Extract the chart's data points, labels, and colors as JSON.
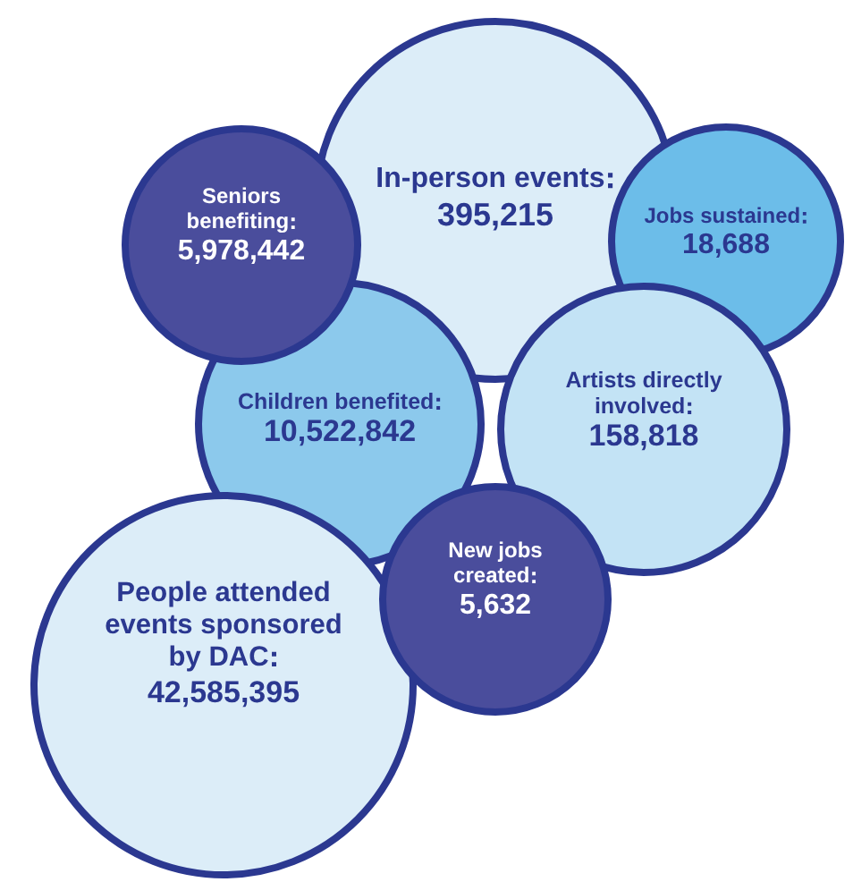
{
  "chart_data": {
    "type": "other",
    "categories": [
      "In-person events",
      "Seniors benefiting",
      "Jobs sustained",
      "Children benefited",
      "Artists directly involved",
      "New jobs created",
      "People attended events sponsored by DAC"
    ],
    "values": [
      395215,
      5978442,
      18688,
      10522842,
      158818,
      5632,
      42585395
    ],
    "value_labels": [
      "395,215",
      "5,978,442",
      "18,688",
      "10,522,842",
      "158,818",
      "5,632",
      "42,585,395"
    ],
    "colors": [
      "#dcedf8",
      "#4a4d9c",
      "#6cbde9",
      "#8cc9ec",
      "#c3e3f5",
      "#4a4d9c",
      "#dcedf8"
    ]
  }
}
